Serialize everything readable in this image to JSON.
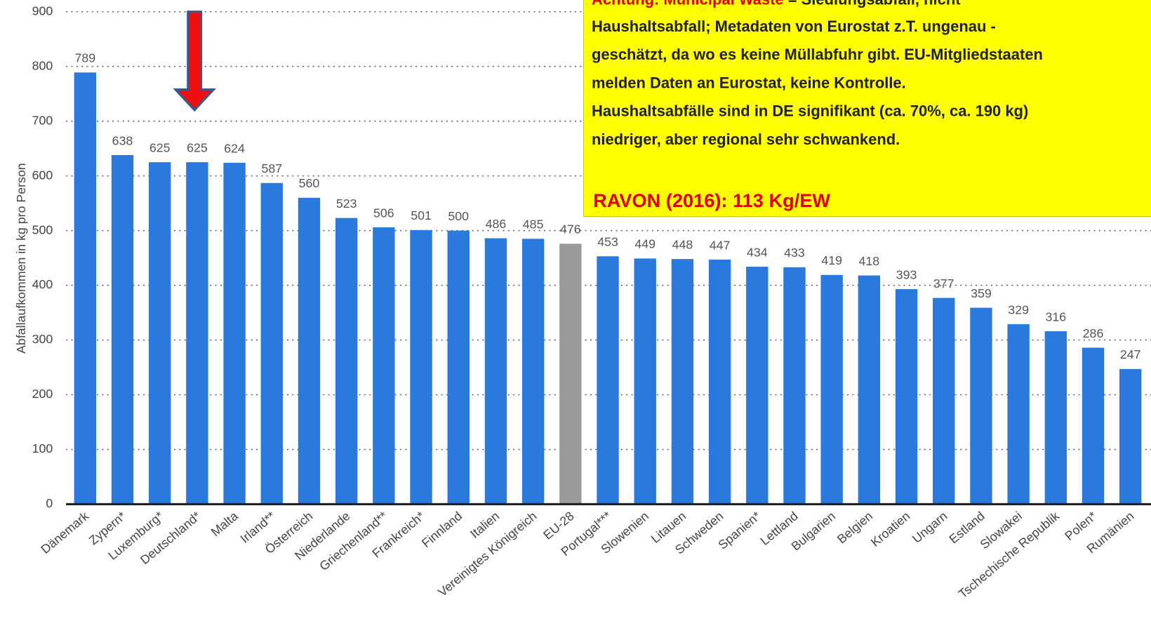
{
  "chart_data": {
    "type": "bar",
    "y_label": "Abfallaufkommen in kg pro Person",
    "categories": [
      "Dänemark",
      "Zypern*",
      "Luxemburg*",
      "Deutschland*",
      "Malta",
      "Irland**",
      "Österreich",
      "Niederlande",
      "Griechenland**",
      "Frankreich*",
      "Finnland",
      "Italien",
      "Vereinigtes Königreich",
      "EU-28",
      "Portugal***",
      "Slowenien",
      "Litauen",
      "Schweden",
      "Spanien*",
      "Lettland",
      "Bulgarien",
      "Belgien",
      "Kroatien",
      "Ungarn",
      "Estland",
      "Slowakei",
      "Tschechische Republik",
      "Polen*",
      "Rumänien"
    ],
    "values": [
      789,
      638,
      625,
      625,
      624,
      587,
      560,
      523,
      506,
      501,
      500,
      486,
      485,
      476,
      453,
      449,
      448,
      447,
      434,
      433,
      419,
      418,
      393,
      377,
      359,
      329,
      316,
      286,
      247
    ],
    "colors": [
      "#2a79dd",
      "#2a79dd",
      "#2a79dd",
      "#2a79dd",
      "#2a79dd",
      "#2a79dd",
      "#2a79dd",
      "#2a79dd",
      "#2a79dd",
      "#2a79dd",
      "#2a79dd",
      "#2a79dd",
      "#2a79dd",
      "#9a9a9a",
      "#2a79dd",
      "#2a79dd",
      "#2a79dd",
      "#2a79dd",
      "#2a79dd",
      "#2a79dd",
      "#2a79dd",
      "#2a79dd",
      "#2a79dd",
      "#2a79dd",
      "#2a79dd",
      "#2a79dd",
      "#2a79dd",
      "#2a79dd",
      "#2a79dd"
    ],
    "ylim": [
      0,
      900
    ],
    "yticks": [
      0,
      100,
      200,
      300,
      400,
      500,
      600,
      700,
      800,
      900
    ],
    "grid": true,
    "annotation": {
      "heading": "Achtung: Municipal Waste",
      "heading_rest": " = Siedlungsabfall, nicht",
      "lines": [
        "Haushaltsabfall; Metadaten von Eurostat z.T. ungenau -",
        "geschätzt, da wo es keine Müllabfuhr gibt. EU-Mitgliedstaaten",
        "melden Daten an Eurostat, keine Kontrolle.",
        "Haushaltsabfälle sind in DE signifikant (ca. 70%, ca. 190 kg)",
        "niedriger, aber regional sehr schwankend."
      ],
      "note": "RAVON (2016): 113 Kg/EW"
    }
  }
}
